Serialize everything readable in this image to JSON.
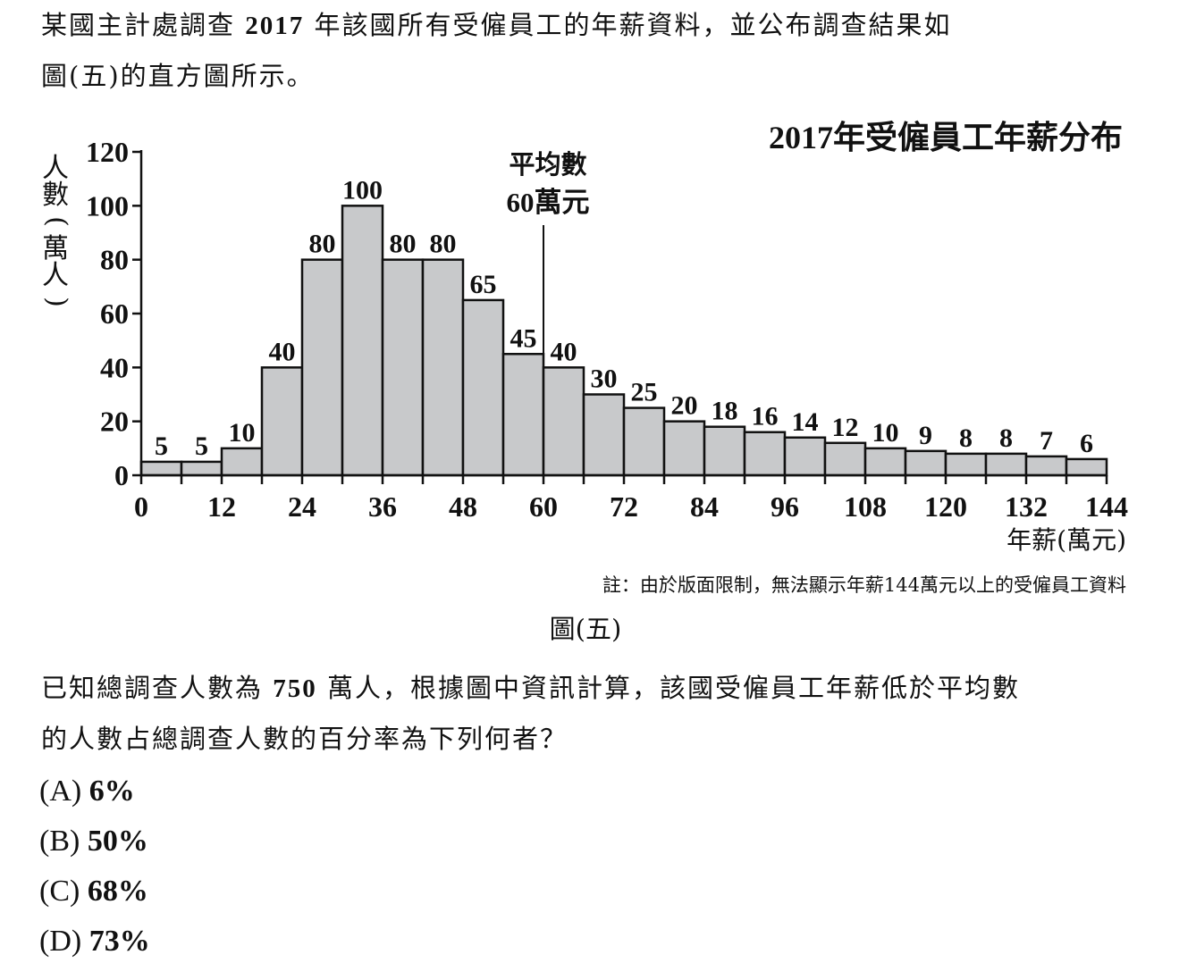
{
  "question": {
    "intro_line1_a": "某國主計處調查",
    "intro_year": "2017",
    "intro_line1_b": "年該國所有受僱員工的年薪資料，並公布調查結果如",
    "intro_line2": "圖(五)的直方圖所示。",
    "body_line1_a": "已知總調查人數為",
    "body_total": "750",
    "body_line1_b": "萬人，根據圖中資訊計算，該國受僱員工年薪低於平均數",
    "body_line2": "的人數占總調查人數的百分率為下列何者？",
    "options": [
      {
        "letter": "(A)",
        "value": "6%"
      },
      {
        "letter": "(B)",
        "value": "50%"
      },
      {
        "letter": "(C)",
        "value": "68%"
      },
      {
        "letter": "(D)",
        "value": "73%"
      }
    ]
  },
  "chart_data": {
    "type": "bar",
    "title": "2017年受僱員工年薪分布",
    "xlabel": "年薪(萬元)",
    "ylabel": "人數(萬人)",
    "bin_edges": [
      0,
      6,
      12,
      18,
      24,
      30,
      36,
      42,
      48,
      54,
      60,
      66,
      72,
      78,
      84,
      90,
      96,
      102,
      108,
      114,
      120,
      126,
      132,
      138,
      144
    ],
    "values": [
      5,
      5,
      10,
      40,
      80,
      100,
      80,
      80,
      65,
      45,
      40,
      30,
      25,
      20,
      18,
      16,
      14,
      12,
      10,
      9,
      8,
      8,
      7,
      6
    ],
    "value_labels": [
      "5",
      "5",
      "10",
      "40",
      "80",
      "100",
      "80",
      "80",
      "65",
      "45",
      "40",
      "30",
      "25",
      "20",
      "18",
      "16",
      "14",
      "12",
      "10",
      "9",
      "8",
      "8",
      "7",
      "6"
    ],
    "x_ticks": [
      "0",
      "12",
      "24",
      "36",
      "48",
      "60",
      "72",
      "84",
      "96",
      "108",
      "120",
      "132",
      "144"
    ],
    "y_ticks": [
      "0",
      "20",
      "40",
      "60",
      "80",
      "100",
      "120"
    ],
    "xlim": [
      0,
      144
    ],
    "ylim": [
      0,
      120
    ],
    "mean_marker": {
      "x": 60,
      "label_line1": "平均數",
      "label_line2_num": "60",
      "label_line2_unit": "萬元"
    },
    "note": "註：由於版面限制，無法顯示年薪144萬元以上的受僱員工資料",
    "caption": "圖(五)",
    "grid": false,
    "bar_fill": "#c8c9cb"
  }
}
